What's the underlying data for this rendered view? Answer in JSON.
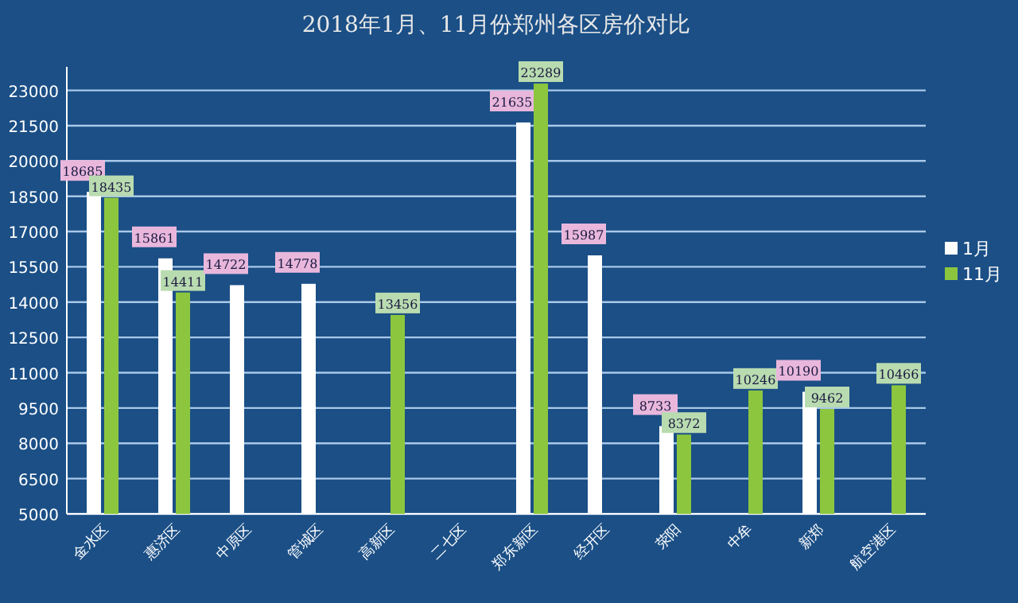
{
  "chart_data": {
    "type": "bar",
    "title": "2018年1月、11月份郑州各区房价对比",
    "categories": [
      "金水区",
      "惠济区",
      "中原区",
      "管城区",
      "高新区",
      "二七区",
      "郑东新区",
      "经开区",
      "荥阳",
      "中牟",
      "新郑",
      "航空港区"
    ],
    "series": [
      {
        "name": "1月",
        "color": "#ffffff",
        "values": [
          18685,
          15861,
          14722,
          14778,
          null,
          null,
          21635,
          15987,
          8733,
          null,
          10190,
          null
        ]
      },
      {
        "name": "11月",
        "color": "#8cc63f",
        "values": [
          18435,
          14411,
          null,
          null,
          13456,
          null,
          23289,
          null,
          8372,
          10246,
          9462,
          10466
        ]
      }
    ],
    "ylim": [
      5000,
      24000
    ],
    "yticks": [
      5000,
      6500,
      8000,
      9500,
      11000,
      12500,
      14000,
      15500,
      17000,
      18500,
      20000,
      21500,
      23000
    ],
    "grid": "y",
    "legend": "right",
    "data_labels": true
  }
}
